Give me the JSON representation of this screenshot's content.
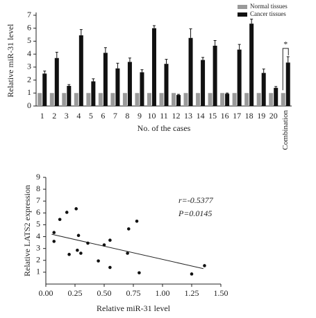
{
  "chart_data": [
    {
      "type": "bar",
      "y_label": "Relative miR-31 level",
      "x_label": "No. of the cases",
      "categories": [
        "1",
        "2",
        "3",
        "4",
        "5",
        "6",
        "7",
        "8",
        "9",
        "10",
        "11",
        "12",
        "13",
        "14",
        "15",
        "16",
        "17",
        "18",
        "19",
        "20",
        "Combination"
      ],
      "series": [
        {
          "name": "Normal tissues",
          "color": "#9a9a9a",
          "values": [
            1,
            1,
            1,
            1,
            1,
            1,
            1,
            1,
            1,
            1,
            1,
            1,
            1,
            1,
            1,
            1,
            1,
            1,
            1,
            1,
            1
          ]
        },
        {
          "name": "Cancer tissues",
          "color": "#111111",
          "values": [
            2.5,
            3.7,
            1.55,
            5.45,
            1.9,
            4.1,
            2.9,
            3.4,
            2.6,
            6.0,
            3.25,
            0.85,
            5.25,
            3.55,
            4.65,
            0.95,
            4.35,
            6.35,
            2.55,
            1.4,
            3.35
          ],
          "errors": [
            0.2,
            0.45,
            0.1,
            0.45,
            0.2,
            0.4,
            0.4,
            0.3,
            0.2,
            0.2,
            0.35,
            0.05,
            0.7,
            0.2,
            0.4,
            0.05,
            0.4,
            0.35,
            0.3,
            0.1,
            0.45
          ]
        }
      ],
      "ylim": [
        0,
        7
      ],
      "yticks": [
        0,
        1,
        2,
        3,
        4,
        5,
        6,
        7
      ],
      "significance": "*"
    },
    {
      "type": "scatter",
      "x_label": "Relative miR-31 level",
      "y_label": "Relative LATS2 expression",
      "x": [
        0.07,
        0.07,
        0.12,
        0.18,
        0.2,
        0.26,
        0.27,
        0.28,
        0.3,
        0.36,
        0.45,
        0.5,
        0.55,
        0.55,
        0.71,
        0.7,
        0.78,
        0.8,
        1.25,
        1.36
      ],
      "y": [
        4.35,
        3.6,
        5.45,
        6.05,
        2.5,
        6.35,
        2.85,
        4.1,
        2.6,
        3.45,
        1.95,
        3.3,
        3.7,
        1.4,
        4.65,
        2.6,
        5.3,
        0.95,
        0.85,
        1.55
      ],
      "color": "#111111",
      "trendline": {
        "x": [
          0.05,
          1.35
        ],
        "y": [
          4.2,
          1.3
        ]
      },
      "annotations": [
        "r=-0.5377",
        "P=0.0145"
      ],
      "xlim": [
        0,
        1.5
      ],
      "xticks": [
        {
          "value": 0,
          "label": "0.00"
        },
        {
          "value": 0.25,
          "label": "0.25"
        },
        {
          "value": 0.5,
          "label": "0.50"
        },
        {
          "value": 0.75,
          "label": "0.75"
        },
        {
          "value": 1,
          "label": "1.00"
        },
        {
          "value": 1.25,
          "label": "1.25"
        },
        {
          "value": 1.5,
          "label": "1.50"
        }
      ],
      "ylim": [
        0,
        9
      ],
      "yticks": [
        1,
        2,
        3,
        4,
        5,
        6,
        7,
        8,
        9
      ]
    }
  ]
}
